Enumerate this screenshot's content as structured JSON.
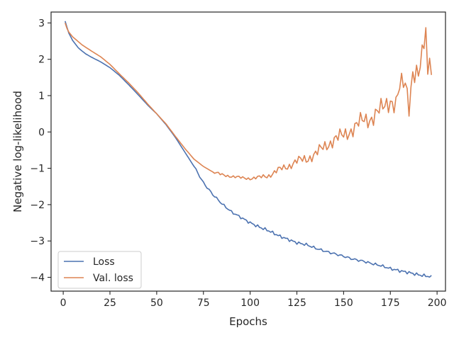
{
  "chart_data": {
    "type": "line",
    "xlabel": "Epochs",
    "ylabel": "Negative log-likelihood",
    "xlim": [
      -6.5,
      204.5
    ],
    "ylim": [
      -4.38,
      3.3
    ],
    "x_ticks": [
      0,
      25,
      50,
      75,
      100,
      125,
      150,
      175,
      200
    ],
    "y_ticks": [
      -4,
      -3,
      -2,
      -1,
      0,
      1,
      2,
      3
    ],
    "grid": false,
    "legend_position": "bottom-left",
    "series": [
      {
        "name": "Loss",
        "color": "#4c72b0",
        "points": [
          [
            1,
            3.05
          ],
          [
            2,
            2.88
          ],
          [
            3,
            2.72
          ],
          [
            5,
            2.52
          ],
          [
            8,
            2.32
          ],
          [
            10,
            2.23
          ],
          [
            12,
            2.15
          ],
          [
            15,
            2.06
          ],
          [
            20,
            1.93
          ],
          [
            25,
            1.77
          ],
          [
            30,
            1.56
          ],
          [
            35,
            1.3
          ],
          [
            40,
            1.03
          ],
          [
            45,
            0.75
          ],
          [
            50,
            0.5
          ],
          [
            55,
            0.2
          ],
          [
            60,
            -0.15
          ],
          [
            65,
            -0.55
          ],
          [
            70,
            -0.95
          ],
          [
            75,
            -1.4
          ],
          [
            80,
            -1.72
          ],
          [
            85,
            -1.98
          ],
          [
            90,
            -2.2
          ],
          [
            95,
            -2.35
          ],
          [
            100,
            -2.5
          ],
          [
            105,
            -2.62
          ],
          [
            110,
            -2.72
          ],
          [
            115,
            -2.85
          ],
          [
            120,
            -2.95
          ],
          [
            125,
            -3.05
          ],
          [
            130,
            -3.1
          ],
          [
            135,
            -3.2
          ],
          [
            140,
            -3.28
          ],
          [
            145,
            -3.35
          ],
          [
            150,
            -3.42
          ],
          [
            155,
            -3.5
          ],
          [
            160,
            -3.55
          ],
          [
            165,
            -3.62
          ],
          [
            170,
            -3.68
          ],
          [
            175,
            -3.76
          ],
          [
            180,
            -3.82
          ],
          [
            185,
            -3.87
          ],
          [
            190,
            -3.93
          ],
          [
            195,
            -3.97
          ],
          [
            197,
            -3.99
          ]
        ]
      },
      {
        "name": "Val. loss",
        "color": "#dd8452",
        "points": [
          [
            1,
            3.0
          ],
          [
            2,
            2.85
          ],
          [
            3,
            2.75
          ],
          [
            5,
            2.62
          ],
          [
            10,
            2.4
          ],
          [
            15,
            2.23
          ],
          [
            20,
            2.07
          ],
          [
            25,
            1.86
          ],
          [
            30,
            1.6
          ],
          [
            35,
            1.35
          ],
          [
            40,
            1.08
          ],
          [
            45,
            0.78
          ],
          [
            50,
            0.5
          ],
          [
            55,
            0.22
          ],
          [
            60,
            -0.12
          ],
          [
            65,
            -0.45
          ],
          [
            70,
            -0.75
          ],
          [
            75,
            -0.95
          ],
          [
            80,
            -1.1
          ],
          [
            85,
            -1.18
          ],
          [
            90,
            -1.22
          ],
          [
            95,
            -1.26
          ],
          [
            100,
            -1.28
          ],
          [
            105,
            -1.25
          ],
          [
            110,
            -1.2
          ],
          [
            115,
            -1.05
          ],
          [
            120,
            -0.95
          ],
          [
            125,
            -0.8
          ],
          [
            130,
            -0.75
          ],
          [
            135,
            -0.6
          ],
          [
            140,
            -0.4
          ],
          [
            145,
            -0.2
          ],
          [
            150,
            -0.1
          ],
          [
            155,
            0.1
          ],
          [
            160,
            0.3
          ],
          [
            165,
            0.4
          ],
          [
            170,
            0.6
          ],
          [
            175,
            0.9
          ],
          [
            178,
            0.75
          ],
          [
            180,
            1.2
          ],
          [
            183,
            1.35
          ],
          [
            185,
            0.8
          ],
          [
            187,
            1.7
          ],
          [
            190,
            1.5
          ],
          [
            192,
            2.0
          ],
          [
            194,
            2.85
          ],
          [
            195,
            1.5
          ],
          [
            196,
            2.45
          ],
          [
            197,
            1.55
          ]
        ]
      }
    ]
  }
}
